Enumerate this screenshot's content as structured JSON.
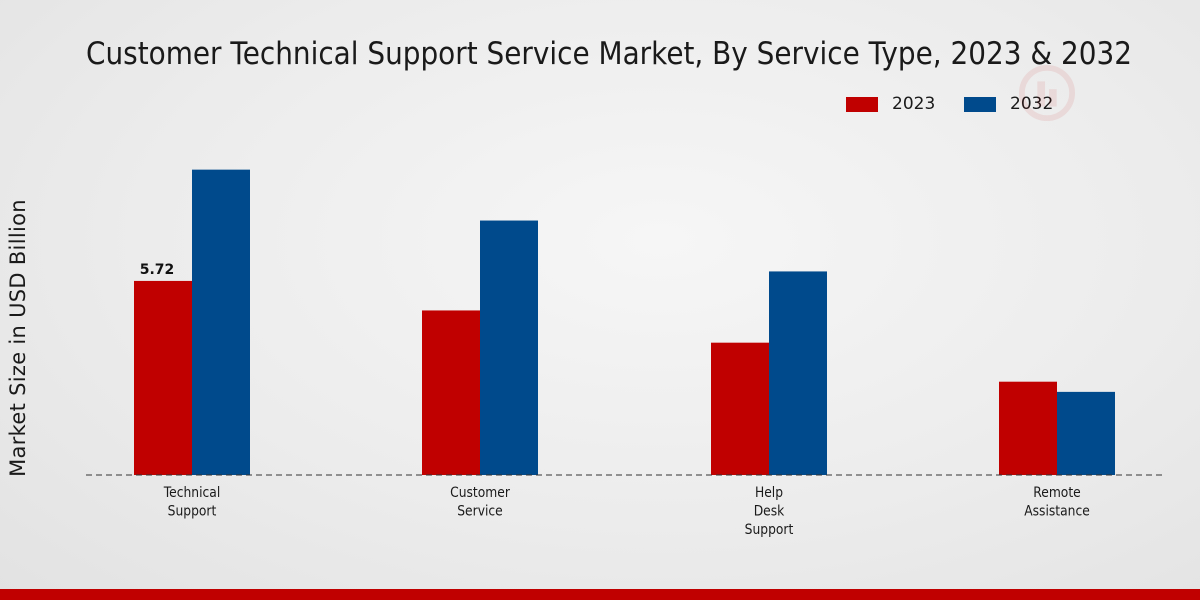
{
  "chart_data": {
    "type": "bar",
    "title": "Customer Technical Support Service Market, By Service Type, 2023 & 2032",
    "ylabel": "Market Size in USD Billion",
    "xlabel": "",
    "categories": [
      [
        "Technical",
        "Support"
      ],
      [
        "Customer",
        "Service"
      ],
      [
        "Help",
        "Desk",
        "Support"
      ],
      [
        "Remote",
        "Assistance"
      ]
    ],
    "series": [
      {
        "name": "2023",
        "color": "#c00000",
        "values": [
          5.72,
          4.85,
          3.9,
          2.75
        ]
      },
      {
        "name": "2032",
        "color": "#004a8c",
        "values": [
          9.0,
          7.5,
          6.0,
          2.45
        ]
      }
    ],
    "data_labels": [
      {
        "series": 0,
        "index": 0,
        "text": "5.72"
      }
    ],
    "ylim": [
      0,
      14
    ],
    "legend_position": "top-right",
    "grid": false
  }
}
